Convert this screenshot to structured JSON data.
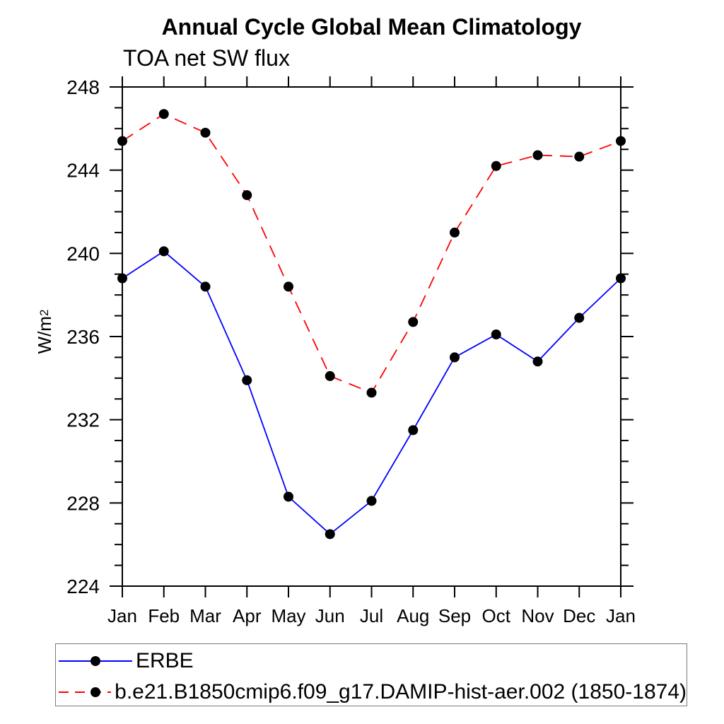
{
  "y_axis": {
    "label_base": "W/m",
    "label_sup": "2"
  },
  "chart_data": {
    "type": "line",
    "title": "Annual Cycle Global Mean Climatology",
    "subtitle": "TOA net SW flux",
    "ylabel": "W/m^2",
    "xlabel": "",
    "categories": [
      "Jan",
      "Feb",
      "Mar",
      "Apr",
      "May",
      "Jun",
      "Jul",
      "Aug",
      "Sep",
      "Oct",
      "Nov",
      "Dec",
      "Jan"
    ],
    "ylim": [
      224,
      248
    ],
    "yticks_major": [
      224,
      228,
      232,
      236,
      240,
      244,
      248
    ],
    "ytick_minor_step": 1,
    "grid": false,
    "legend_position": "bottom-left-box",
    "frame_color": "#000000",
    "series": [
      {
        "name": "ERBE",
        "line_color": "#0000ff",
        "line_style": "solid",
        "marker": "filled-circle",
        "marker_color": "#000000",
        "values": [
          238.8,
          240.1,
          238.4,
          233.9,
          228.3,
          226.5,
          228.1,
          231.5,
          235.0,
          236.1,
          234.8,
          236.9,
          238.8
        ]
      },
      {
        "name": "b.e21.B1850cmip6.f09_g17.DAMIP-hist-aer.002 (1850-1874)",
        "line_color": "#ff0000",
        "line_style": "dashed",
        "marker": "filled-circle",
        "marker_color": "#000000",
        "values": [
          245.4,
          246.7,
          245.8,
          242.8,
          238.4,
          234.1,
          233.3,
          236.7,
          241.0,
          244.2,
          244.72,
          244.65,
          245.4
        ]
      }
    ]
  }
}
